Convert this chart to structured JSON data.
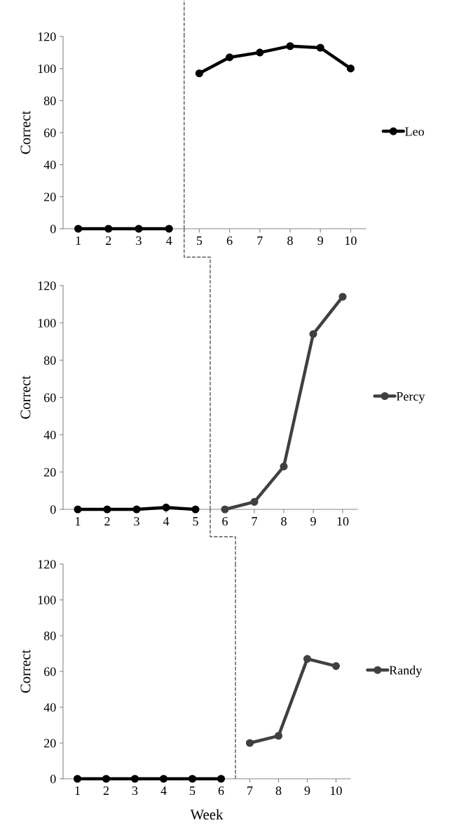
{
  "chart_data": [
    {
      "type": "line",
      "ylabel": "Correct",
      "xlim": [
        0.5,
        10.5
      ],
      "xticks": [
        1,
        2,
        3,
        4,
        5,
        6,
        7,
        8,
        9,
        10
      ],
      "ylim": [
        0,
        120
      ],
      "yticks": [
        0,
        20,
        40,
        60,
        80,
        100,
        120
      ],
      "grid": false,
      "legend": "right",
      "marker": "circle",
      "line_style": "solid",
      "series": [
        {
          "color": "#000000",
          "x": [
            1,
            2,
            3,
            4
          ],
          "values": [
            0,
            0,
            0,
            0
          ]
        },
        {
          "name": "Leo",
          "color": "#000000",
          "x": [
            5,
            6,
            7,
            8,
            9,
            10
          ],
          "values": [
            97,
            107,
            110,
            114,
            113,
            100
          ]
        }
      ],
      "ref_lines": [
        {
          "axis": "x",
          "value": 4.5,
          "color": "#555555",
          "line_style": "dashed"
        }
      ]
    },
    {
      "type": "line",
      "ylabel": "Correct",
      "xlim": [
        0.5,
        10.5
      ],
      "xticks": [
        1,
        2,
        3,
        4,
        5,
        6,
        7,
        8,
        9,
        10
      ],
      "ylim": [
        0,
        120
      ],
      "yticks": [
        0,
        20,
        40,
        60,
        80,
        100,
        120
      ],
      "grid": false,
      "legend": "right",
      "marker": "circle",
      "line_style": "solid",
      "series": [
        {
          "color": "#000000",
          "x": [
            1,
            2,
            3,
            4,
            5
          ],
          "values": [
            0,
            0,
            0,
            1,
            0
          ]
        },
        {
          "name": "Percy",
          "color": "#404040",
          "x": [
            6,
            7,
            8,
            9,
            10
          ],
          "values": [
            0,
            4,
            23,
            94,
            114
          ]
        }
      ],
      "ref_lines": [
        {
          "axis": "x",
          "value": 5.5,
          "color": "#555555",
          "line_style": "dashed"
        }
      ]
    },
    {
      "type": "line",
      "ylabel": "Correct",
      "xlabel": "Week",
      "xlim": [
        0.5,
        10.5
      ],
      "xticks": [
        1,
        2,
        3,
        4,
        5,
        6,
        7,
        8,
        9,
        10
      ],
      "ylim": [
        0,
        120
      ],
      "yticks": [
        0,
        20,
        40,
        60,
        80,
        100,
        120
      ],
      "grid": false,
      "legend": "right",
      "marker": "circle",
      "line_style": "solid",
      "series": [
        {
          "color": "#000000",
          "x": [
            1,
            2,
            3,
            4,
            5,
            6
          ],
          "values": [
            0,
            0,
            0,
            0,
            0,
            0
          ]
        },
        {
          "name": "Randy",
          "color": "#404040",
          "x": [
            7,
            8,
            9,
            10
          ],
          "values": [
            20,
            24,
            67,
            63
          ]
        }
      ],
      "ref_lines": [
        {
          "axis": "x",
          "value": 6.5,
          "color": "#555555",
          "line_style": "dashed"
        }
      ]
    }
  ]
}
